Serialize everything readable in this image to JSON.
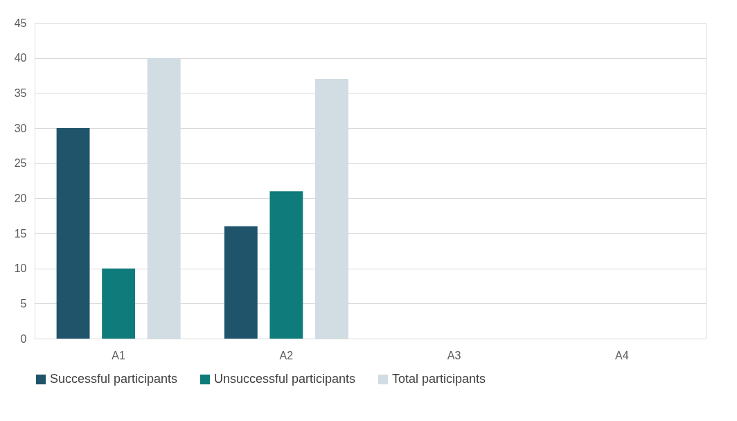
{
  "chart_data": {
    "type": "bar",
    "categories": [
      "A1",
      "A2",
      "A3",
      "A4"
    ],
    "series": [
      {
        "name": "Successful participants",
        "color": "#1f546b",
        "values": [
          30,
          16,
          null,
          null
        ]
      },
      {
        "name": "Unsuccessful participants",
        "color": "#0f7b7b",
        "values": [
          10,
          21,
          null,
          null
        ]
      },
      {
        "name": "Total participants",
        "color": "#d1dde2",
        "values": [
          40,
          37,
          null,
          null
        ]
      }
    ],
    "ylim": [
      0,
      45
    ],
    "yticks": [
      0,
      5,
      10,
      15,
      20,
      25,
      30,
      35,
      40,
      45
    ],
    "grid": "y",
    "legend": "bottom"
  }
}
